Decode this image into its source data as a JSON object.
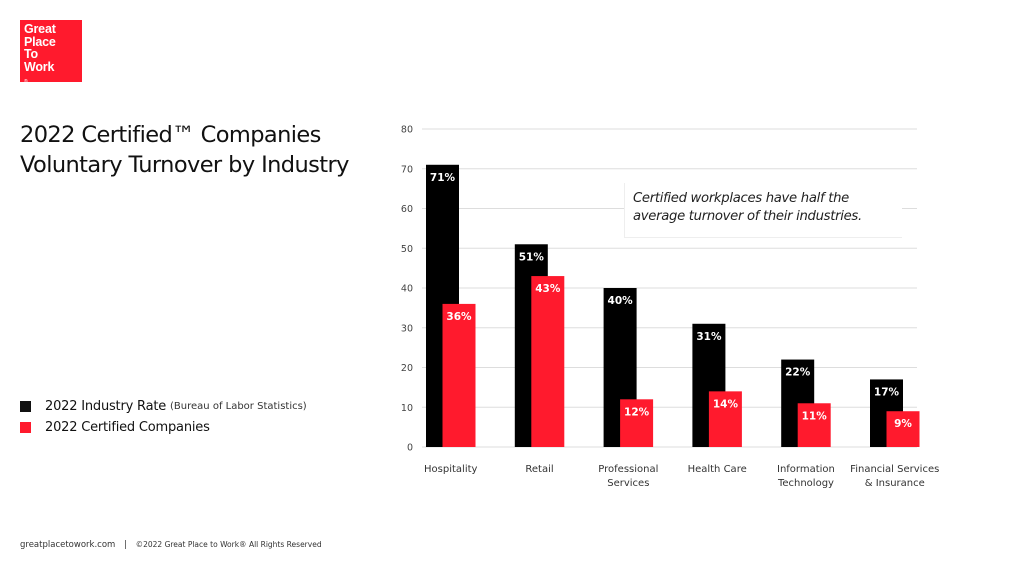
{
  "logo": {
    "lines": [
      "Great",
      "Place",
      "To",
      "Work"
    ],
    "registered_mark": "®"
  },
  "title": "2022 Certified™ Companies Voluntary Turnover by Industry",
  "legend": [
    {
      "label": "2022 Industry Rate",
      "note": "(Bureau of Labor Statistics)",
      "color": "#111111"
    },
    {
      "label": "2022 Certified Companies",
      "note": "",
      "color": "#ff1a2d"
    }
  ],
  "callout": "Certified workplaces have half the average turnover of their industries.",
  "footer": {
    "site": "greatplacetowork.com",
    "separator": "|",
    "copyright": "©2022 Great Place to Work® All Rights Reserved"
  },
  "colors": {
    "brand_red": "#ff1a2d",
    "industry_black": "#000000",
    "grid": "#dddddd"
  },
  "chart_data": {
    "type": "bar",
    "title": "2022 Certified™ Companies Voluntary Turnover by Industry",
    "xlabel": "",
    "ylabel": "",
    "ylim": [
      0,
      80
    ],
    "yticks": [
      0,
      10,
      20,
      30,
      40,
      50,
      60,
      70,
      80
    ],
    "grid": true,
    "legend_position": "left",
    "categories": [
      [
        "Hospitality"
      ],
      [
        "Retail"
      ],
      [
        "Professional",
        "Services"
      ],
      [
        "Health Care"
      ],
      [
        "Information",
        "Technology"
      ],
      [
        "Financial Services",
        "& Insurance"
      ]
    ],
    "series": [
      {
        "name": "2022 Industry Rate (Bureau of Labor Statistics)",
        "color": "#000000",
        "values": [
          71,
          51,
          40,
          31,
          22,
          17
        ],
        "labels": [
          "71%",
          "51%",
          "40%",
          "31%",
          "22%",
          "17%"
        ]
      },
      {
        "name": "2022 Certified Companies",
        "color": "#ff1a2d",
        "values": [
          36,
          43,
          12,
          14,
          11,
          9
        ],
        "labels": [
          "36%",
          "43%",
          "12%",
          "14%",
          "11%",
          "9%"
        ]
      }
    ],
    "annotation": "Certified workplaces have half the average turnover of their industries."
  }
}
